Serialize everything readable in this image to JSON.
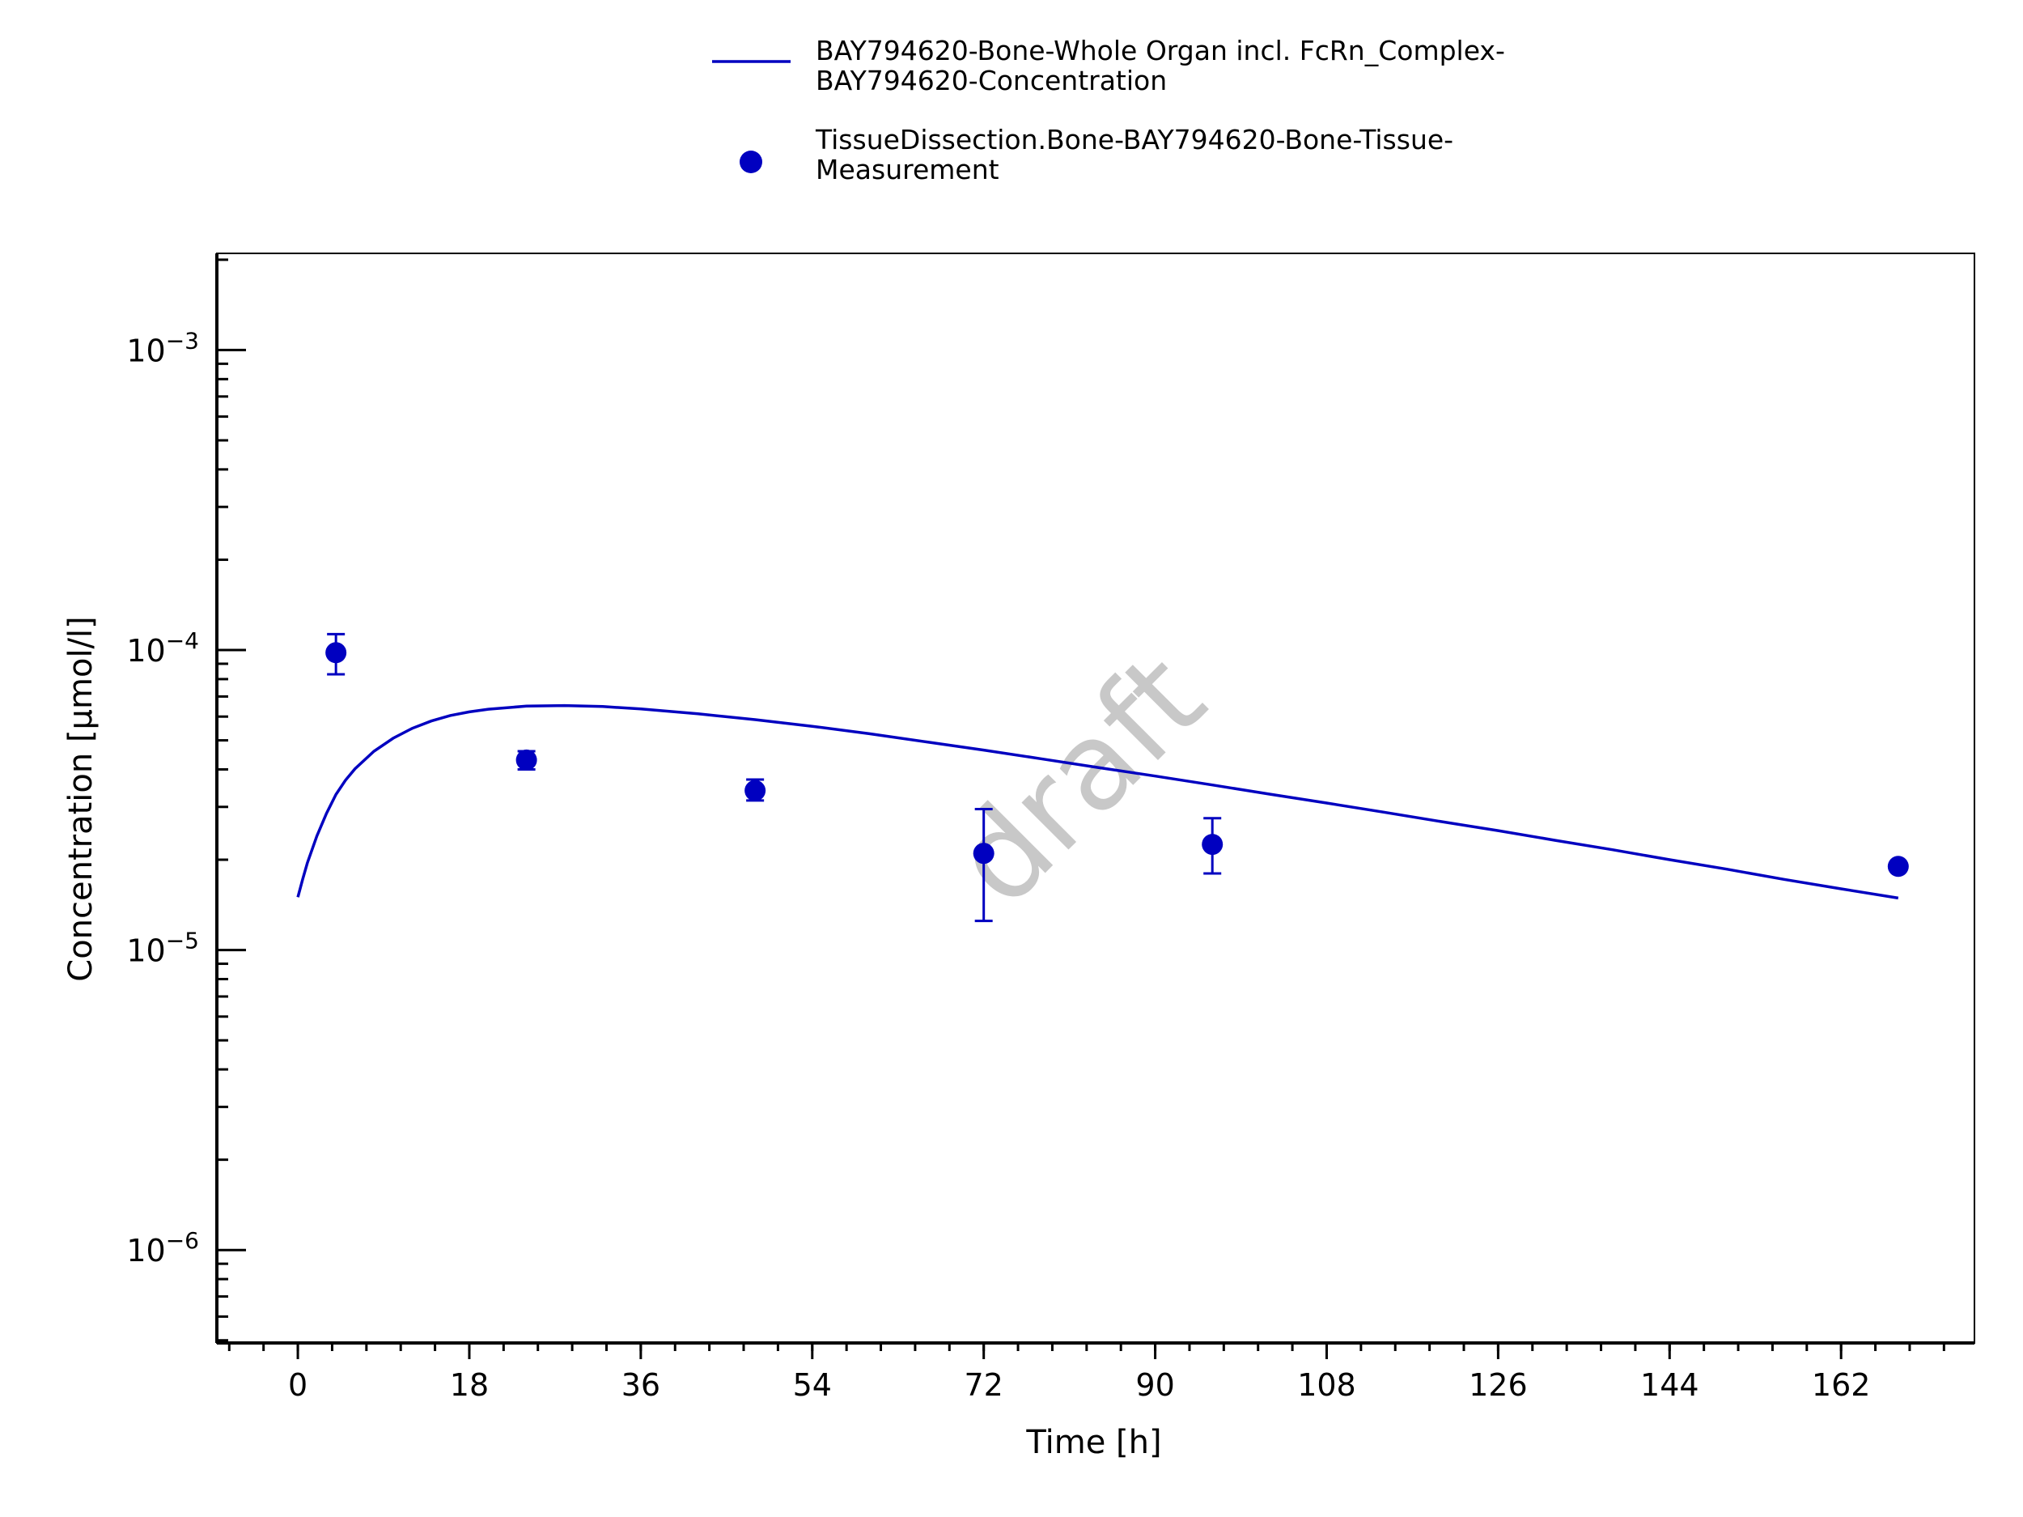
{
  "chart_data": {
    "type": "line",
    "title": "",
    "xlabel": "Time [h]",
    "ylabel": "Concentration [µmol/l]",
    "x_scale": "linear",
    "y_scale": "log",
    "xlim": [
      -8.5,
      176
    ],
    "ylim": [
      4.9e-07,
      0.0021
    ],
    "x_ticks": [
      0,
      18,
      36,
      54,
      72,
      90,
      108,
      126,
      144,
      162
    ],
    "x_tick_labels": [
      "0",
      "18",
      "36",
      "54",
      "72",
      "90",
      "108",
      "126",
      "144",
      "162"
    ],
    "y_ticks": [
      {
        "value": 1e-06,
        "base": "10",
        "exp": "−6"
      },
      {
        "value": 1e-05,
        "base": "10",
        "exp": "−5"
      },
      {
        "value": 0.0001,
        "base": "10",
        "exp": "−4"
      },
      {
        "value": 0.001,
        "base": "10",
        "exp": "−3"
      }
    ],
    "grid": false,
    "legend_position": "top",
    "watermark": "draft",
    "series": [
      {
        "name": "BAY794620-Bone-Whole Organ incl. FcRn_Complex-BAY794620-Concentration",
        "name_lines": [
          "BAY794620-Bone-Whole Organ incl. FcRn_Complex-",
          "BAY794620-Concentration"
        ],
        "kind": "line",
        "color": "#0000c0",
        "x": [
          0,
          0.5,
          1,
          2,
          3,
          4,
          5,
          6,
          8,
          10,
          12,
          14,
          16,
          18,
          20,
          24,
          28,
          32,
          36,
          42,
          48,
          54,
          60,
          66,
          72,
          78,
          84,
          90,
          96,
          102,
          108,
          114,
          120,
          126,
          132,
          138,
          144,
          150,
          156,
          162,
          168
        ],
        "y": [
          1.5e-05,
          1.72e-05,
          1.95e-05,
          2.4e-05,
          2.85e-05,
          3.3e-05,
          3.68e-05,
          4.02e-05,
          4.6e-05,
          5.08e-05,
          5.48e-05,
          5.8e-05,
          6.05e-05,
          6.22e-05,
          6.35e-05,
          6.5e-05,
          6.53e-05,
          6.48e-05,
          6.36e-05,
          6.13e-05,
          5.86e-05,
          5.57e-05,
          5.26e-05,
          4.94e-05,
          4.64e-05,
          4.34e-05,
          4.06e-05,
          3.8e-05,
          3.55e-05,
          3.31e-05,
          3.09e-05,
          2.88e-05,
          2.68e-05,
          2.5e-05,
          2.32e-05,
          2.16e-05,
          2e-05,
          1.86e-05,
          1.72e-05,
          1.6e-05,
          1.49e-05
        ]
      },
      {
        "name": "TissueDissection.Bone-BAY794620-Bone-Tissue-Measurement",
        "name_lines": [
          "TissueDissection.Bone-BAY794620-Bone-Tissue-",
          "Measurement"
        ],
        "kind": "scatter",
        "color": "#0000c0",
        "points": [
          {
            "x": 4,
            "y": 9.8e-05,
            "y_low": 8.3e-05,
            "y_high": 0.000113
          },
          {
            "x": 24,
            "y": 4.3e-05,
            "y_low": 4e-05,
            "y_high": 4.6e-05
          },
          {
            "x": 48,
            "y": 3.4e-05,
            "y_low": 3.15e-05,
            "y_high": 3.7e-05
          },
          {
            "x": 72,
            "y": 2.1e-05,
            "y_low": 1.25e-05,
            "y_high": 2.95e-05
          },
          {
            "x": 96,
            "y": 2.25e-05,
            "y_low": 1.8e-05,
            "y_high": 2.75e-05
          },
          {
            "x": 168,
            "y": 1.9e-05
          }
        ]
      }
    ]
  }
}
